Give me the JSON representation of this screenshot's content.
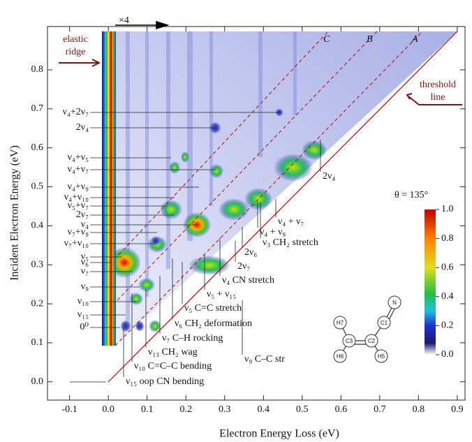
{
  "chart_data": {
    "type": "heatmap",
    "xlabel": "Electron Energy Loss (eV)",
    "ylabel": "Incident Electron Energy (eV)",
    "xlim": [
      -0.157,
      0.92
    ],
    "ylim": [
      -0.047,
      0.911
    ],
    "xticks": [
      -0.1,
      {
        "value": 0,
        "label": "0.0"
      },
      0.1,
      0.2,
      0.3,
      0.4,
      0.5,
      0.6,
      0.7,
      0.8,
      0.9
    ],
    "yticks": [
      {
        "value": 0,
        "label": "0.0"
      },
      0.1,
      0.2,
      0.3,
      0.4,
      0.5,
      0.6,
      0.7,
      0.8
    ],
    "colorbar": {
      "lim": [
        0,
        1
      ],
      "ticks": [
        {
          "value": 0,
          "label": "0.0"
        },
        0.2,
        0.4,
        0.6,
        0.8,
        {
          "value": 1,
          "label": "1.0"
        }
      ]
    },
    "left_labels": [
      "ν₄+2ν₇",
      "2ν₄",
      "ν₄+ν₅",
      "ν₄+ν₇",
      "ν₄+ν₉",
      "ν₄+ν₁₀",
      "ν₅+ν₇",
      "2ν₇",
      "ν₄",
      "ν₇+ν₉",
      "ν₇+ν₁₀",
      "ν₅",
      "ν₆",
      "ν₇",
      "ν₉",
      "ν₁₀",
      "ν₁₅",
      "0⁰"
    ],
    "right_labels": [
      "2ν₄",
      "ν₄ + ν₇",
      "ν₄ + ν₉",
      "ν₃ CH₂ stretch",
      "2ν₆",
      "2ν₇",
      "ν₄ CN stretch",
      "ν₅ + ν₁₅",
      "ν₅ C=C stretch",
      "ν₆ CH₂ deformation",
      "ν₇ C–H rocking",
      "ν₁₃ CH₂ wag",
      "ν₉ C–C str",
      "ν₁₀ C=C–C bending",
      "ν₁₅ oop CN bending"
    ],
    "line_labels": [
      "A",
      "B",
      "C"
    ],
    "elastic_ridge": [
      "elastic",
      "ridge"
    ],
    "threshold_line": [
      "threshold",
      "line"
    ],
    "scale_note": "×4",
    "angle": "θ = 135°",
    "atoms": [
      "N",
      "C1",
      "C2",
      "C3",
      "H7",
      "H6",
      "H5"
    ]
  }
}
